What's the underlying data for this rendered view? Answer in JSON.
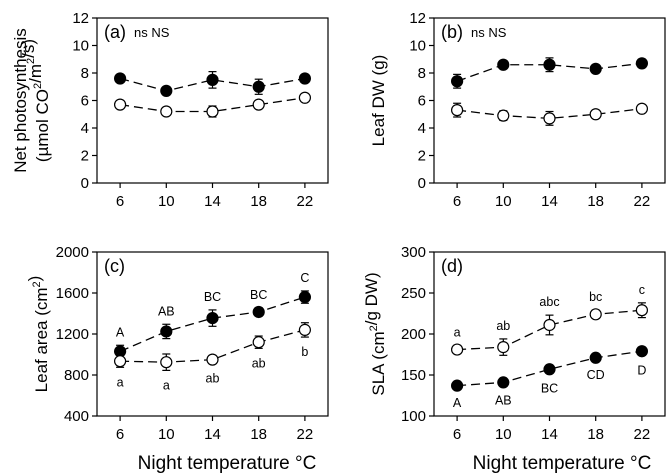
{
  "figure": {
    "xlabel_left": "Night temperature °C",
    "xlabel_right": "Night temperature °C"
  },
  "chart_data": [
    {
      "type": "line",
      "panel_label": "(a)",
      "annotation": "ns NS",
      "ylabel": [
        "Net photosynthesis",
        "(µmol CO2/m2/s)"
      ],
      "x": [
        6,
        10,
        14,
        18,
        22
      ],
      "xlim": [
        4,
        24
      ],
      "ylim": [
        0,
        12
      ],
      "yticks": [
        0,
        2,
        4,
        6,
        8,
        10,
        12
      ],
      "series": [
        {
          "marker": "filled",
          "values": [
            7.6,
            6.7,
            7.5,
            7.0,
            7.6
          ],
          "errors": [
            0.2,
            0.25,
            0.6,
            0.55,
            0.2
          ],
          "labels": []
        },
        {
          "marker": "open",
          "values": [
            5.7,
            5.2,
            5.2,
            5.7,
            6.2
          ],
          "errors": [
            0.2,
            0.2,
            0.4,
            0.2,
            0.2
          ],
          "labels": []
        }
      ]
    },
    {
      "type": "line",
      "panel_label": "(b)",
      "annotation": "ns NS",
      "ylabel": [
        "Leaf DW (g)"
      ],
      "x": [
        6,
        10,
        14,
        18,
        22
      ],
      "xlim": [
        4,
        24
      ],
      "ylim": [
        0,
        12
      ],
      "yticks": [
        0,
        2,
        4,
        6,
        8,
        10,
        12
      ],
      "series": [
        {
          "marker": "filled",
          "values": [
            7.4,
            8.6,
            8.6,
            8.3,
            8.7
          ],
          "errors": [
            0.5,
            0.25,
            0.5,
            0.2,
            0.3
          ],
          "labels": []
        },
        {
          "marker": "open",
          "values": [
            5.3,
            4.9,
            4.7,
            5.0,
            5.4
          ],
          "errors": [
            0.5,
            0.35,
            0.5,
            0.2,
            0.25
          ],
          "labels": []
        }
      ]
    },
    {
      "type": "line",
      "panel_label": "(c)",
      "ylabel": [
        "Leaf area (cm2)"
      ],
      "x": [
        6,
        10,
        14,
        18,
        22
      ],
      "xlim": [
        4,
        24
      ],
      "ylim": [
        400,
        2000
      ],
      "yticks": [
        400,
        800,
        1200,
        1600,
        2000
      ],
      "series": [
        {
          "marker": "filled",
          "values": [
            1030,
            1225,
            1355,
            1415,
            1560
          ],
          "errors": [
            60,
            70,
            80,
            40,
            60
          ],
          "labels": [
            "A",
            "AB",
            "BC",
            "BC",
            "C"
          ],
          "label_pos": "above"
        },
        {
          "marker": "open",
          "values": [
            935,
            925,
            950,
            1120,
            1240
          ],
          "errors": [
            60,
            80,
            40,
            60,
            70
          ],
          "labels": [
            "a",
            "a",
            "ab",
            "ab",
            "b"
          ],
          "label_pos": "below"
        }
      ]
    },
    {
      "type": "line",
      "panel_label": "(d)",
      "ylabel": [
        "SLA (cm2/g DW)"
      ],
      "x": [
        6,
        10,
        14,
        18,
        22
      ],
      "xlim": [
        4,
        24
      ],
      "ylim": [
        100,
        300
      ],
      "yticks": [
        100,
        150,
        200,
        250,
        300
      ],
      "series": [
        {
          "marker": "filled",
          "values": [
            137,
            141,
            157,
            171,
            179
          ],
          "errors": [
            3,
            4,
            5,
            3,
            5
          ],
          "labels": [
            "A",
            "AB",
            "BC",
            "CD",
            "D"
          ],
          "label_pos": "below"
        },
        {
          "marker": "open",
          "values": [
            181,
            184,
            211,
            224,
            229
          ],
          "errors": [
            5,
            10,
            12,
            5,
            9
          ],
          "labels": [
            "a",
            "ab",
            "abc",
            "bc",
            "c"
          ],
          "label_pos": "above"
        }
      ]
    }
  ]
}
